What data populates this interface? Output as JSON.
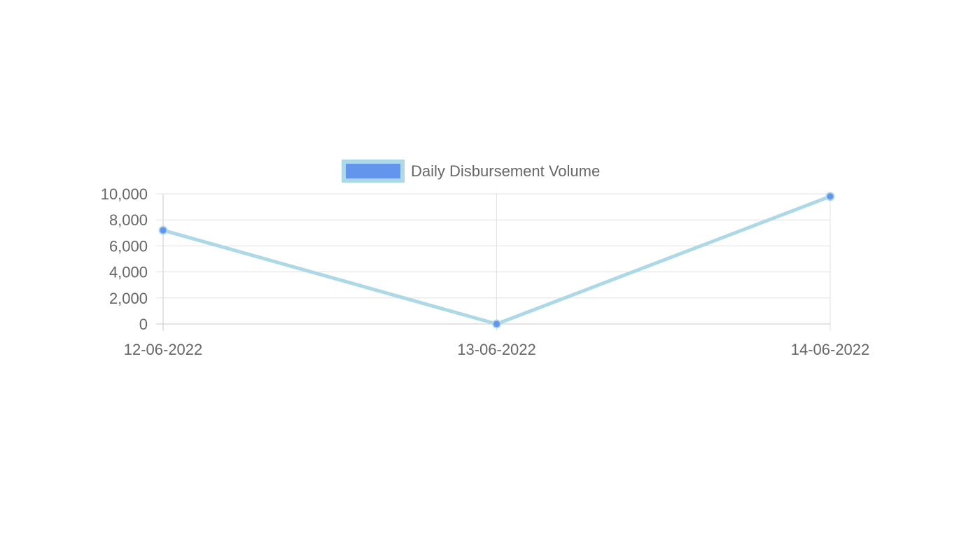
{
  "chart_data": {
    "type": "line",
    "x": [
      "12-06-2022",
      "13-06-2022",
      "14-06-2022"
    ],
    "series": [
      {
        "name": "Daily Disbursement Volume",
        "values": [
          7200,
          0,
          9800
        ]
      }
    ],
    "ylim": [
      0,
      10000
    ],
    "yticks": [
      "0",
      "2,000",
      "4,000",
      "6,000",
      "8,000",
      "10,000"
    ],
    "grid": true,
    "legend_position": "top",
    "colors": {
      "line": "#ADD8E6",
      "point": "#6495ED",
      "legend_fill": "#6495ED",
      "legend_border": "#ADD8E6",
      "grid": "#e0e0e0",
      "axis": "#c8c8c8",
      "text": "#666666"
    }
  }
}
